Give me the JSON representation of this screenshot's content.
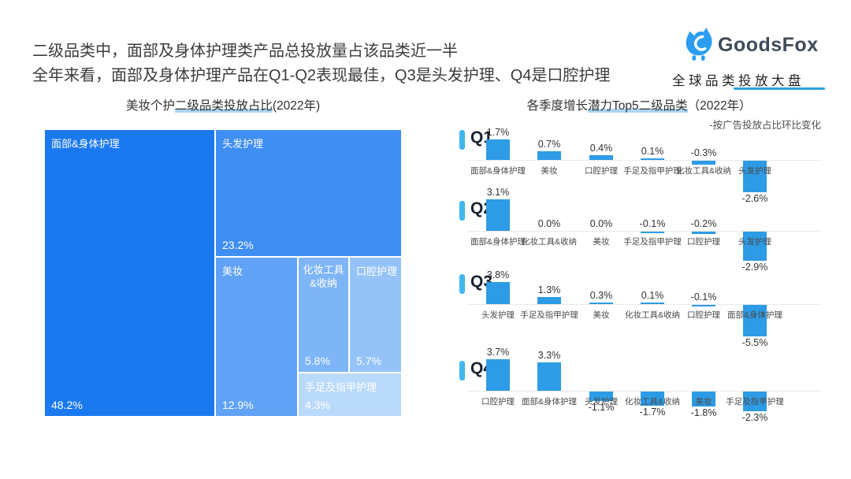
{
  "header": {
    "line1": "二级品类中，面部及身体护理类产品总投放量占该品类近一半",
    "line2": "全年来看，面部及身体护理产品在Q1-Q2表现最佳，Q3是头发护理、Q4是口腔护理"
  },
  "logo": {
    "brand": "GoodsFox",
    "tagline": "全球品类投放大盘",
    "icon": "fox-icon",
    "brand_color": "#3e4b59",
    "icon_color": "#2b9df0",
    "underline_color": "#2aa3dc"
  },
  "left_chart": {
    "title_pre": "美妆个护",
    "title_highlight": "二级品类投放占比",
    "title_post": "(2022年)",
    "highlight_color": "#abd6f3"
  },
  "right_chart": {
    "title_pre": "各季度增长",
    "title_highlight": "潜力Top5二级品类",
    "title_post": "（2022年）",
    "subtitle": "-按广告投放占比环比变化",
    "bar_color": "#2d9be5",
    "badge_color": "#41b6ec",
    "axis_color": "#e9e9e9"
  },
  "treemap_colors": [
    "#1b79f0",
    "#3f8ef3",
    "#60a2f5",
    "#7eb5f7",
    "#95c3f8",
    "#badafb"
  ],
  "chart_data": [
    {
      "type": "treemap",
      "title": "美妆个护二级品类投放占比(2022年)",
      "unit": "%",
      "categories": [
        "面部&身体护理",
        "头发护理",
        "美妆",
        "化妆工具&收纳",
        "口腔护理",
        "手足及指甲护理"
      ],
      "values": [
        48.2,
        23.2,
        12.9,
        5.8,
        5.7,
        4.3
      ]
    },
    {
      "type": "bar",
      "quarter": "Q1",
      "unit": "%",
      "categories": [
        "面部&身体护理",
        "美妆",
        "口腔护理",
        "手足及指甲护理",
        "化妆工具&收纳",
        "头发护理"
      ],
      "values": [
        1.7,
        0.7,
        0.4,
        0.1,
        -0.3,
        -2.6
      ]
    },
    {
      "type": "bar",
      "quarter": "Q2",
      "unit": "%",
      "categories": [
        "面部&身体护理",
        "化妆工具&收纳",
        "美妆",
        "手足及指甲护理",
        "口腔护理",
        "头发护理"
      ],
      "values": [
        3.1,
        0.0,
        0.0,
        -0.1,
        -0.2,
        -2.9
      ]
    },
    {
      "type": "bar",
      "quarter": "Q3",
      "unit": "%",
      "categories": [
        "头发护理",
        "手足及指甲护理",
        "美妆",
        "化妆工具&收纳",
        "口腔护理",
        "面部&身体护理"
      ],
      "values": [
        3.8,
        1.3,
        0.3,
        0.1,
        -0.1,
        -5.5
      ]
    },
    {
      "type": "bar",
      "quarter": "Q4",
      "unit": "%",
      "categories": [
        "口腔护理",
        "面部&身体护理",
        "头发护理",
        "化妆工具&收纳",
        "美妆",
        "手足及指甲护理"
      ],
      "values": [
        3.7,
        3.3,
        -1.1,
        -1.7,
        -1.8,
        -2.3
      ]
    }
  ]
}
